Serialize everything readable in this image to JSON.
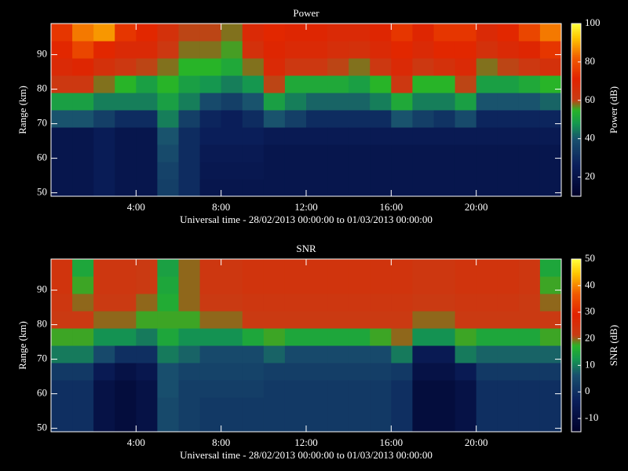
{
  "chart_data": [
    {
      "type": "heatmap",
      "title": "Power",
      "xlabel": "Universal time - 28/02/2013 00:00:00 to 01/03/2013 00:00:00",
      "ylabel": "Range (km)",
      "colorbar_label": "Power (dB)",
      "xlim": [
        0,
        24
      ],
      "ylim": [
        49,
        99
      ],
      "xticks": [
        {
          "value": 4,
          "label": "4:00"
        },
        {
          "value": 8,
          "label": "8:00"
        },
        {
          "value": 12,
          "label": "12:00"
        },
        {
          "value": 16,
          "label": "16:00"
        },
        {
          "value": 20,
          "label": "20:00"
        }
      ],
      "yticks": [
        50,
        60,
        70,
        80,
        90
      ],
      "clim": [
        10,
        100
      ],
      "cticks": [
        20,
        40,
        60,
        80,
        100
      ],
      "xbins": [
        0,
        1,
        2,
        3,
        4,
        5,
        6,
        7,
        8,
        9,
        10,
        11,
        12,
        13,
        14,
        15,
        16,
        17,
        18,
        19,
        20,
        21,
        22,
        23,
        24
      ],
      "ybins": [
        49,
        54,
        59,
        64,
        69,
        74,
        79,
        84,
        89,
        94,
        99
      ],
      "values": [
        [
          22,
          22,
          25,
          22,
          22,
          35,
          30,
          22,
          22,
          22,
          22,
          22,
          22,
          22,
          22,
          22,
          22,
          22,
          22,
          22,
          22,
          22,
          22,
          22
        ],
        [
          22,
          22,
          25,
          22,
          22,
          36,
          30,
          23,
          23,
          23,
          22,
          22,
          22,
          22,
          22,
          22,
          22,
          22,
          22,
          22,
          22,
          22,
          22,
          22
        ],
        [
          22,
          22,
          25,
          22,
          22,
          38,
          30,
          24,
          24,
          24,
          22,
          22,
          22,
          22,
          22,
          22,
          22,
          22,
          22,
          22,
          22,
          22,
          22,
          22
        ],
        [
          22,
          22,
          25,
          22,
          22,
          40,
          30,
          26,
          26,
          26,
          24,
          24,
          24,
          24,
          24,
          24,
          24,
          24,
          24,
          24,
          24,
          24,
          24,
          24
        ],
        [
          40,
          40,
          35,
          30,
          30,
          45,
          35,
          28,
          26,
          30,
          40,
          35,
          30,
          30,
          30,
          30,
          40,
          35,
          32,
          38,
          28,
          28,
          28,
          28
        ],
        [
          50,
          50,
          45,
          45,
          45,
          50,
          45,
          38,
          35,
          40,
          50,
          45,
          42,
          42,
          42,
          45,
          52,
          45,
          45,
          50,
          40,
          40,
          40,
          42
        ],
        [
          62,
          62,
          58,
          55,
          50,
          55,
          50,
          48,
          45,
          48,
          60,
          52,
          52,
          52,
          50,
          55,
          62,
          55,
          55,
          60,
          50,
          50,
          52,
          55
        ],
        [
          68,
          70,
          65,
          62,
          60,
          58,
          55,
          55,
          52,
          58,
          68,
          62,
          62,
          60,
          58,
          62,
          68,
          62,
          65,
          68,
          58,
          60,
          62,
          65
        ],
        [
          72,
          78,
          72,
          68,
          68,
          62,
          58,
          58,
          56,
          65,
          70,
          68,
          68,
          66,
          65,
          68,
          72,
          68,
          72,
          72,
          65,
          68,
          70,
          75
        ],
        [
          75,
          85,
          88,
          75,
          72,
          65,
          60,
          60,
          58,
          68,
          72,
          70,
          70,
          68,
          68,
          70,
          75,
          70,
          75,
          75,
          68,
          72,
          78,
          85
        ]
      ]
    },
    {
      "type": "heatmap",
      "title": "SNR",
      "xlabel": "Universal time - 28/02/2013 00:00:00 to 01/03/2013 00:00:00",
      "ylabel": "Range (km)",
      "colorbar_label": "SNR (dB)",
      "xlim": [
        0,
        24
      ],
      "ylim": [
        49,
        99
      ],
      "xticks": [
        {
          "value": 4,
          "label": "4:00"
        },
        {
          "value": 8,
          "label": "8:00"
        },
        {
          "value": 12,
          "label": "12:00"
        },
        {
          "value": 16,
          "label": "16:00"
        },
        {
          "value": 20,
          "label": "20:00"
        }
      ],
      "yticks": [
        50,
        60,
        70,
        80,
        90
      ],
      "clim": [
        -15,
        50
      ],
      "cticks": [
        -10,
        0,
        10,
        20,
        30,
        40,
        50
      ],
      "xbins": [
        0,
        1,
        2,
        3,
        4,
        5,
        6,
        7,
        8,
        9,
        10,
        11,
        12,
        13,
        14,
        15,
        16,
        17,
        18,
        19,
        20,
        21,
        22,
        23,
        24
      ],
      "ybins": [
        49,
        54,
        59,
        64,
        69,
        74,
        79,
        84,
        89,
        94,
        99
      ],
      "values": [
        [
          0,
          0,
          -8,
          -10,
          -8,
          5,
          3,
          2,
          2,
          2,
          2,
          2,
          2,
          2,
          2,
          2,
          0,
          -10,
          -10,
          -8,
          0,
          0,
          0,
          0
        ],
        [
          0,
          0,
          -8,
          -10,
          -8,
          5,
          3,
          2,
          2,
          2,
          2,
          2,
          2,
          2,
          2,
          2,
          0,
          -10,
          -10,
          -8,
          0,
          0,
          0,
          0
        ],
        [
          0,
          0,
          -8,
          -10,
          -8,
          6,
          3,
          3,
          3,
          3,
          2,
          2,
          2,
          2,
          2,
          2,
          0,
          -10,
          -10,
          -8,
          0,
          0,
          0,
          0
        ],
        [
          2,
          2,
          -5,
          -8,
          -6,
          6,
          4,
          4,
          4,
          4,
          3,
          3,
          3,
          3,
          3,
          3,
          2,
          -8,
          -8,
          -5,
          2,
          2,
          2,
          2
        ],
        [
          10,
          10,
          5,
          0,
          0,
          10,
          8,
          5,
          5,
          5,
          8,
          5,
          5,
          5,
          5,
          5,
          10,
          -5,
          -5,
          10,
          8,
          8,
          8,
          8
        ],
        [
          18,
          18,
          12,
          12,
          10,
          15,
          12,
          12,
          12,
          15,
          18,
          15,
          15,
          15,
          15,
          18,
          20,
          12,
          12,
          18,
          15,
          15,
          15,
          18
        ],
        [
          22,
          22,
          20,
          20,
          18,
          18,
          18,
          20,
          20,
          22,
          22,
          22,
          22,
          22,
          22,
          22,
          22,
          20,
          20,
          22,
          22,
          22,
          22,
          22
        ],
        [
          23,
          20,
          22,
          22,
          20,
          16,
          20,
          22,
          22,
          23,
          23,
          23,
          23,
          23,
          23,
          23,
          23,
          22,
          22,
          23,
          23,
          23,
          22,
          20
        ],
        [
          24,
          18,
          23,
          23,
          22,
          15,
          20,
          23,
          23,
          24,
          24,
          24,
          24,
          24,
          24,
          24,
          24,
          23,
          23,
          24,
          24,
          24,
          23,
          18
        ],
        [
          24,
          15,
          23,
          23,
          22,
          14,
          20,
          23,
          23,
          24,
          24,
          24,
          24,
          24,
          24,
          24,
          24,
          23,
          23,
          24,
          24,
          24,
          23,
          15
        ]
      ]
    }
  ]
}
